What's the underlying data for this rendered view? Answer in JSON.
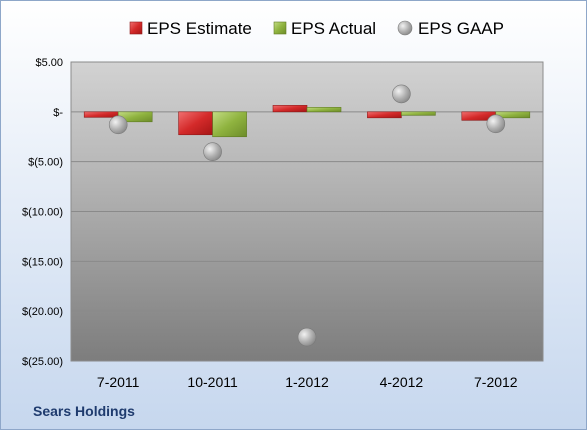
{
  "chart_data": {
    "type": "bar",
    "categories": [
      "7-2011",
      "10-2011",
      "1-2012",
      "4-2012",
      "7-2012"
    ],
    "series": [
      {
        "name": "EPS Estimate",
        "kind": "bar",
        "color": "#d42a2a",
        "values": [
          -0.55,
          -2.3,
          0.65,
          -0.6,
          -0.85
        ]
      },
      {
        "name": "EPS Actual",
        "kind": "bar",
        "color": "#8fb33f",
        "values": [
          -1.0,
          -2.5,
          0.45,
          -0.35,
          -0.6
        ]
      },
      {
        "name": "EPS GAAP",
        "kind": "marker",
        "color": "#a8a8a8",
        "values": [
          -1.3,
          -4.0,
          -22.6,
          1.8,
          -1.2
        ]
      }
    ],
    "yticks": [
      "$5.00",
      "$-",
      "$(5.00)",
      "$(10.00)",
      "$(15.00)",
      "$(20.00)",
      "$(25.00)"
    ],
    "ytick_values": [
      5,
      0,
      -5,
      -10,
      -15,
      -20,
      -25
    ],
    "ylim": [
      -25,
      5
    ],
    "grid": true,
    "legend_position": "top",
    "footer": "Sears Holdings"
  }
}
